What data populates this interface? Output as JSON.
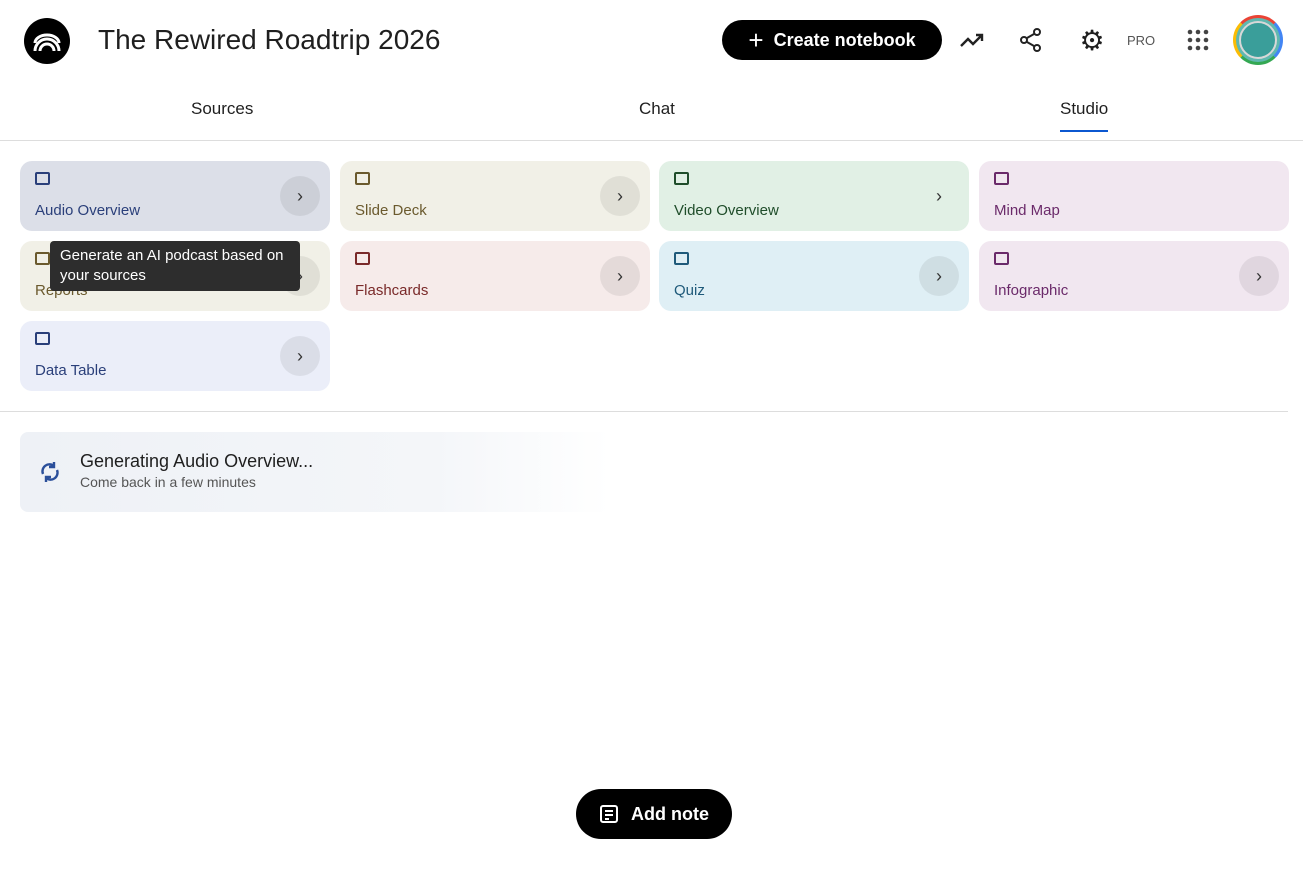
{
  "header": {
    "title": "The Rewired Roadtrip 2026",
    "create_label": "Create notebook",
    "pro_label": "PRO"
  },
  "tabs": [
    {
      "label": "Sources"
    },
    {
      "label": "Chat"
    },
    {
      "label": "Studio",
      "active": true
    }
  ],
  "studio": {
    "cards": [
      {
        "label": "Audio Overview",
        "icon": "audio-waveform-icon",
        "bg": "#dcdfe8",
        "color": "#2a3f7a"
      },
      {
        "label": "Slide Deck",
        "icon": "slides-icon",
        "bg": "#f1f0e7",
        "color": "#6b5a2e"
      },
      {
        "label": "Video Overview",
        "icon": "video-icon",
        "bg": "#e1f0e5",
        "color": "#1f4d2a"
      },
      {
        "label": "Mind Map",
        "icon": "mind-map-icon",
        "bg": "#f1e7f0",
        "color": "#6b2a6a"
      },
      {
        "label": "Reports",
        "icon": "reports-icon",
        "bg": "#f1f0e7",
        "color": "#6b5a2e"
      },
      {
        "label": "Flashcards",
        "icon": "flashcards-icon",
        "bg": "#f6ebea",
        "color": "#7a2a2a"
      },
      {
        "label": "Quiz",
        "icon": "quiz-icon",
        "bg": "#dfeff5",
        "color": "#1f5a7a"
      },
      {
        "label": "Infographic",
        "icon": "infographic-icon",
        "bg": "#f1e7f0",
        "color": "#6b2a6a"
      },
      {
        "label": "Data Table",
        "icon": "table-icon",
        "bg": "#ebeef9",
        "color": "#2a3f7a"
      }
    ],
    "tooltip": "Generate an AI podcast based on your sources",
    "generating": {
      "title": "Generating Audio Overview...",
      "subtitle": "Come back in a few minutes"
    }
  },
  "add_note_label": "Add note"
}
